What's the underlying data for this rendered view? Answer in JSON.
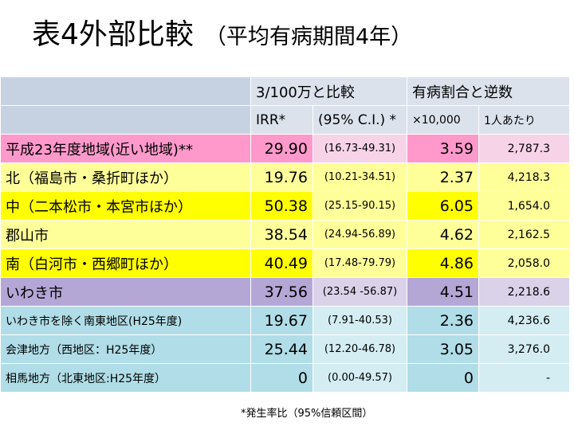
{
  "title": "表4外部比較",
  "subtitle": "（平均有病期間4年）",
  "header": {
    "group_compare": "3/100万と比較",
    "group_prevalence": "有病割合と逆数",
    "irr": "IRR*",
    "ci": "(95% C.I.) *",
    "per10000": "×10,000",
    "per_person": "1人あたり"
  },
  "rows": [
    {
      "name": "平成23年度地域(近い地域)**",
      "irr": "29.90",
      "ci": "(16.73-49.31)",
      "rate": "3.59",
      "inverse": "2,787.3"
    },
    {
      "name": "北（福島市・桑折町ほか）",
      "irr": "19.76",
      "ci": "(10.21-34.51)",
      "rate": "2.37",
      "inverse": "4,218.3"
    },
    {
      "name": "中（二本松市・本宮市ほか）",
      "irr": "50.38",
      "ci": "(25.15-90.15)",
      "rate": "6.05",
      "inverse": "1,654.0"
    },
    {
      "name": "郡山市",
      "irr": "38.54",
      "ci": "(24.94-56.89)",
      "rate": "4.62",
      "inverse": "2,162.5"
    },
    {
      "name": "南（白河市・西郷町ほか）",
      "irr": "40.49",
      "ci": "(17.48-79.79)",
      "rate": "4.86",
      "inverse": "2,058.0"
    },
    {
      "name": "いわき市",
      "irr": "37.56",
      "ci": "(23.54 -56.87)",
      "rate": "4.51",
      "inverse": "2,218.6"
    },
    {
      "name": "いわき市を除く南東地区(H25年度)",
      "irr": "19.67",
      "ci": "(7.91-40.53)",
      "rate": "2.36",
      "inverse": "4,236.6"
    },
    {
      "name": "会津地方（西地区：H25年度）",
      "irr": "25.44",
      "ci": "(12.20-46.78)",
      "rate": "3.05",
      "inverse": "3,276.0"
    },
    {
      "name": "相馬地方（北東地区:H25年度）",
      "irr": "0",
      "ci": "(0.00-49.57)",
      "rate": "0",
      "inverse": "-"
    }
  ],
  "footnote": "*発生率比（95%信頼区間）",
  "colors": {
    "header": "#dbe2ec",
    "pink": "#ff99cc",
    "yellow_light": "#ffff99",
    "yellow": "#ffff00",
    "purple": "#b4a7d6",
    "cyan": "#b0dde7"
  }
}
